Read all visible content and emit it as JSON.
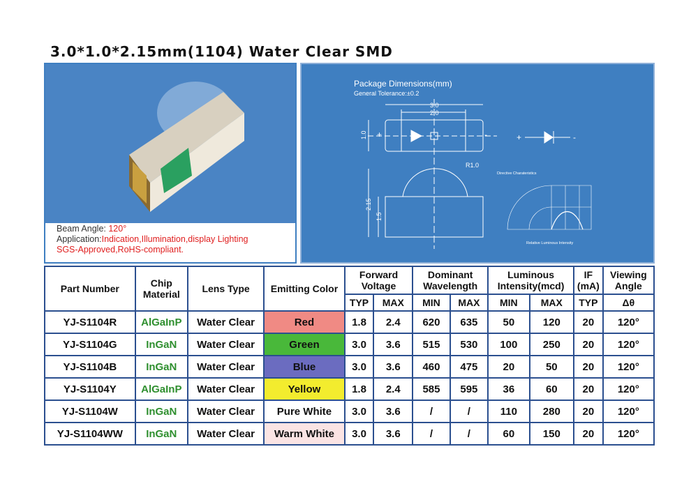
{
  "title": "3.0*1.0*2.15mm(1104) Water Clear SMD",
  "left_panel": {
    "beam_label": "Beam Angle: ",
    "beam_value": "120°",
    "app_label": "Application:",
    "app_value": "Indication,Illumination,display Lighting",
    "cert": "SGS-Approved,RoHS-compliant."
  },
  "diagram": {
    "title": "Package Dimensions(mm)",
    "tolerance": "General Tolerance:±0.2",
    "dim_30": "3.0",
    "dim_20": "2.0",
    "dim_10": "1.0",
    "dim_215": "2.15",
    "dim_15": "1.5",
    "radius": "R1.0",
    "plus": "+",
    "minus": "-",
    "directive_title": "Directive Charateristics",
    "directive_xlabel": "Relative Luminous Intensity"
  },
  "table": {
    "headers": {
      "part": "Part Number",
      "chip": "Chip Material",
      "lens": "Lens Type",
      "color": "Emitting Color",
      "fv": "Forward Voltage",
      "wl": "Dominant Wavelength",
      "li": "Luminous Intensity(mcd)",
      "if": "IF (mA)",
      "va": "Viewing Angle"
    },
    "sub": [
      "TYP",
      "MAX",
      "MIN",
      "MAX",
      "MIN",
      "MAX",
      "TYP",
      "Δθ"
    ],
    "rows": [
      {
        "part": "YJ-S1104R",
        "chip": "AlGaInP",
        "lens": "Water Clear",
        "color": "Red",
        "bg": "#f08a84",
        "c": [
          "1.8",
          "2.4",
          "620",
          "635",
          "50",
          "120",
          "20",
          "120°"
        ]
      },
      {
        "part": "YJ-S1104G",
        "chip": "InGaN",
        "lens": "Water Clear",
        "color": "Green",
        "bg": "#49b83a",
        "c": [
          "3.0",
          "3.6",
          "515",
          "530",
          "100",
          "250",
          "20",
          "120°"
        ]
      },
      {
        "part": "YJ-S1104B",
        "chip": "InGaN",
        "lens": "Water Clear",
        "color": "Blue",
        "bg": "#6b6cc0",
        "c": [
          "3.0",
          "3.6",
          "460",
          "475",
          "20",
          "50",
          "20",
          "120°"
        ]
      },
      {
        "part": "YJ-S1104Y",
        "chip": "AlGaInP",
        "lens": "Water Clear",
        "color": "Yellow",
        "bg": "#f3ec2e",
        "c": [
          "1.8",
          "2.4",
          "585",
          "595",
          "36",
          "60",
          "20",
          "120°"
        ]
      },
      {
        "part": "YJ-S1104W",
        "chip": "InGaN",
        "lens": "Water Clear",
        "color": "Pure White",
        "bg": "#ffffff",
        "c": [
          "3.0",
          "3.6",
          "/",
          "/",
          "110",
          "280",
          "20",
          "120°"
        ]
      },
      {
        "part": "YJ-S1104WW",
        "chip": "InGaN",
        "lens": "Water Clear",
        "color": "Warm White",
        "bg": "#fbe4e4",
        "c": [
          "3.0",
          "3.6",
          "/",
          "/",
          "60",
          "150",
          "20",
          "120°"
        ]
      }
    ]
  }
}
